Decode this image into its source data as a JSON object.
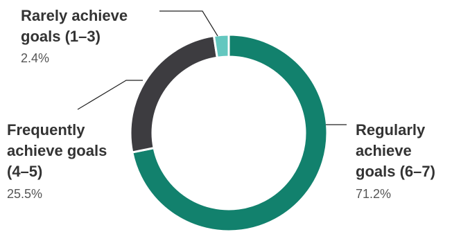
{
  "chart_data": {
    "type": "pie",
    "variant": "donut",
    "title": "",
    "slices": [
      {
        "key": "regularly",
        "label_lines": [
          "Regularly",
          "achieve",
          "goals (6–7)"
        ],
        "value": 71.2,
        "value_label": "71.2%",
        "color": "#12816D"
      },
      {
        "key": "frequently",
        "label_lines": [
          "Frequently",
          "achieve goals",
          "(4–5)"
        ],
        "value": 25.5,
        "value_label": "25.5%",
        "color": "#3D3C40"
      },
      {
        "key": "rarely",
        "label_lines": [
          "Rarely achieve",
          "goals (1–3)"
        ],
        "value": 2.4,
        "value_label": "2.4%",
        "color": "#63C7BF"
      }
    ]
  }
}
